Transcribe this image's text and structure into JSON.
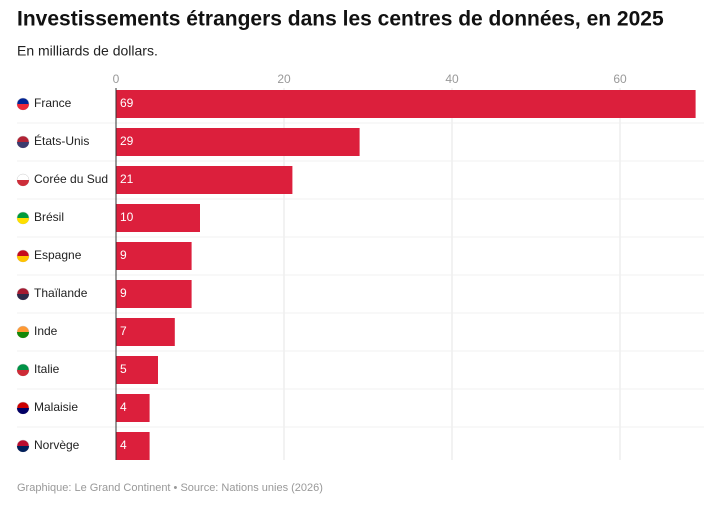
{
  "chart_data": {
    "type": "bar",
    "orientation": "horizontal",
    "title": "Investissements étrangers dans les centres de données, en 2025",
    "subtitle": "En milliards de dollars.",
    "categories": [
      "France",
      "États-Unis",
      "Corée du Sud",
      "Brésil",
      "Espagne",
      "Thaïlande",
      "Inde",
      "Italie",
      "Malaisie",
      "Norvège"
    ],
    "values": [
      69,
      29,
      21,
      10,
      9,
      9,
      7,
      5,
      4,
      4
    ],
    "color": "#dc1f3c",
    "xlim": [
      0,
      70
    ],
    "xticks": [
      0,
      20,
      40,
      60
    ],
    "grid": true,
    "source": "Graphique: Le Grand Continent • Source: Nations unies (2026)"
  }
}
